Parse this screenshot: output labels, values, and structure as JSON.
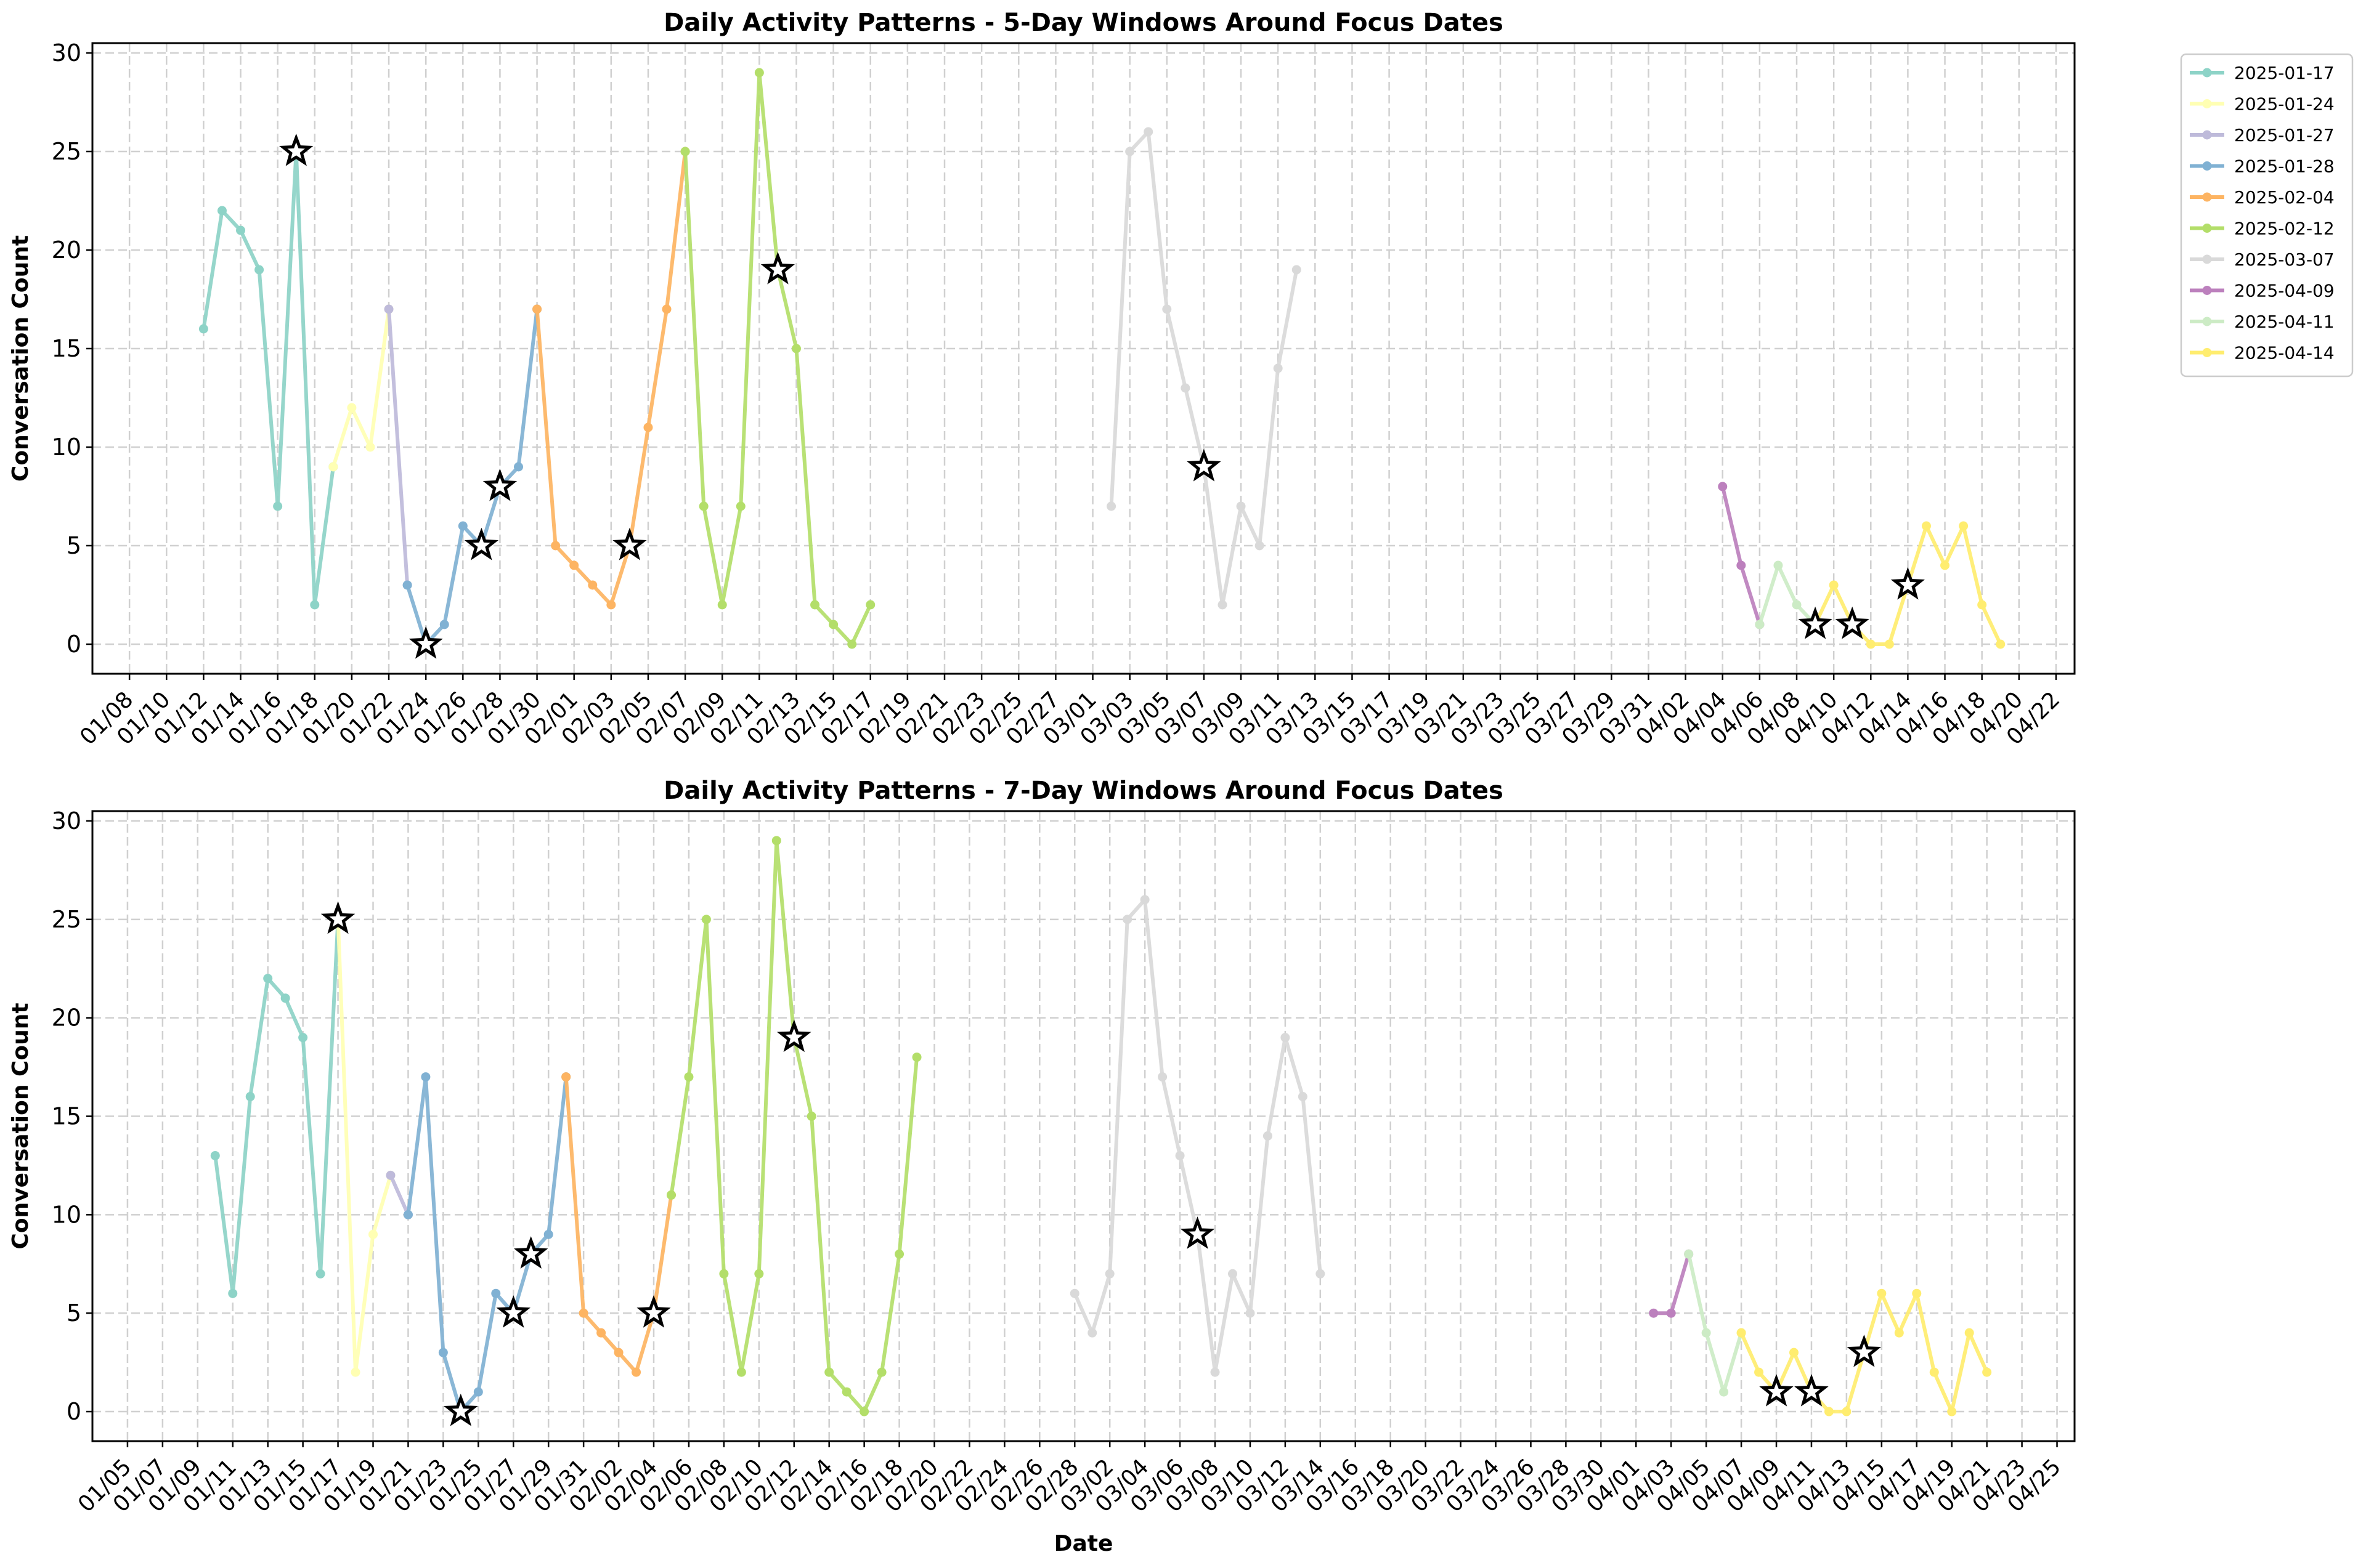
{
  "figure": {
    "legend_placement": "upper-right-outside",
    "legend": [
      {
        "label": "2025-01-17",
        "color": "#8dd3c7"
      },
      {
        "label": "2025-01-24",
        "color": "#ffffb3"
      },
      {
        "label": "2025-01-27",
        "color": "#bebada"
      },
      {
        "label": "2025-01-28",
        "color": "#80b1d3"
      },
      {
        "label": "2025-02-04",
        "color": "#fdb462"
      },
      {
        "label": "2025-02-12",
        "color": "#b3de69"
      },
      {
        "label": "2025-03-07",
        "color": "#d9d9d9"
      },
      {
        "label": "2025-04-09",
        "color": "#bc80bd"
      },
      {
        "label": "2025-04-11",
        "color": "#ccebc5"
      },
      {
        "label": "2025-04-14",
        "color": "#ffed6f"
      }
    ]
  },
  "chart_data": [
    {
      "type": "line",
      "title": "Daily Activity Patterns - 5-Day Windows Around Focus Dates",
      "xlabel": "",
      "ylabel": "Conversation Count",
      "xlim": [
        "2025-01-06",
        "2025-04-23"
      ],
      "ylim": [
        -1.5,
        30.5
      ],
      "xticks": [
        "01/08",
        "01/10",
        "01/12",
        "01/14",
        "01/16",
        "01/18",
        "01/20",
        "01/22",
        "01/24",
        "01/26",
        "01/28",
        "01/30",
        "02/01",
        "02/03",
        "02/05",
        "02/07",
        "02/09",
        "02/11",
        "02/13",
        "02/15",
        "02/17",
        "02/19",
        "02/21",
        "02/23",
        "02/25",
        "02/27",
        "03/01",
        "03/03",
        "03/05",
        "03/07",
        "03/09",
        "03/11",
        "03/13",
        "03/15",
        "03/17",
        "03/19",
        "03/21",
        "03/23",
        "03/25",
        "03/27",
        "03/29",
        "03/31",
        "04/02",
        "04/04",
        "04/06",
        "04/08",
        "04/10",
        "04/12",
        "04/14",
        "04/16",
        "04/18",
        "04/20",
        "04/22"
      ],
      "tick_dates": [
        "2025-01-08",
        "2025-01-10",
        "2025-01-12",
        "2025-01-14",
        "2025-01-16",
        "2025-01-18",
        "2025-01-20",
        "2025-01-22",
        "2025-01-24",
        "2025-01-26",
        "2025-01-28",
        "2025-01-30",
        "2025-02-01",
        "2025-02-03",
        "2025-02-05",
        "2025-02-07",
        "2025-02-09",
        "2025-02-11",
        "2025-02-13",
        "2025-02-15",
        "2025-02-17",
        "2025-02-19",
        "2025-02-21",
        "2025-02-23",
        "2025-02-25",
        "2025-02-27",
        "2025-03-01",
        "2025-03-03",
        "2025-03-05",
        "2025-03-07",
        "2025-03-09",
        "2025-03-11",
        "2025-03-13",
        "2025-03-15",
        "2025-03-17",
        "2025-03-19",
        "2025-03-21",
        "2025-03-23",
        "2025-03-25",
        "2025-03-27",
        "2025-03-29",
        "2025-03-31",
        "2025-04-02",
        "2025-04-04",
        "2025-04-06",
        "2025-04-08",
        "2025-04-10",
        "2025-04-12",
        "2025-04-14",
        "2025-04-16",
        "2025-04-18",
        "2025-04-20",
        "2025-04-22"
      ],
      "yticks": [
        0,
        5,
        10,
        15,
        20,
        25,
        30
      ],
      "grid": true,
      "series": [
        {
          "name": "2025-01-17",
          "color": "#8dd3c7",
          "x": [
            "2025-01-12",
            "2025-01-13",
            "2025-01-14",
            "2025-01-15",
            "2025-01-16",
            "2025-01-17",
            "2025-01-18",
            "2025-01-19"
          ],
          "y": [
            16,
            22,
            21,
            19,
            7,
            25,
            2,
            9
          ]
        },
        {
          "name": "2025-01-24",
          "color": "#ffffb3",
          "x": [
            "2025-01-19",
            "2025-01-20",
            "2025-01-21",
            "2025-01-22"
          ],
          "y": [
            9,
            12,
            10,
            17
          ]
        },
        {
          "name": "2025-01-27",
          "color": "#bebada",
          "x": [
            "2025-01-22",
            "2025-01-23"
          ],
          "y": [
            17,
            3
          ]
        },
        {
          "name": "2025-01-28",
          "color": "#80b1d3",
          "x": [
            "2025-01-23",
            "2025-01-24",
            "2025-01-25",
            "2025-01-26",
            "2025-01-27",
            "2025-01-28",
            "2025-01-29",
            "2025-01-30"
          ],
          "y": [
            3,
            0,
            1,
            6,
            5,
            8,
            9,
            17
          ]
        },
        {
          "name": "2025-02-04",
          "color": "#fdb462",
          "x": [
            "2025-01-30",
            "2025-01-31",
            "2025-02-01",
            "2025-02-02",
            "2025-02-03",
            "2025-02-04",
            "2025-02-05",
            "2025-02-06",
            "2025-02-07"
          ],
          "y": [
            17,
            5,
            4,
            3,
            2,
            5,
            11,
            17,
            25
          ]
        },
        {
          "name": "2025-02-12",
          "color": "#b3de69",
          "x": [
            "2025-02-07",
            "2025-02-08",
            "2025-02-09",
            "2025-02-10",
            "2025-02-11",
            "2025-02-12",
            "2025-02-13",
            "2025-02-14",
            "2025-02-15",
            "2025-02-16",
            "2025-02-17"
          ],
          "y": [
            25,
            7,
            2,
            7,
            29,
            19,
            15,
            2,
            1,
            0,
            2
          ]
        },
        {
          "name": "2025-03-07",
          "color": "#d9d9d9",
          "x": [
            "2025-03-02",
            "2025-03-03",
            "2025-03-04",
            "2025-03-05",
            "2025-03-06",
            "2025-03-07",
            "2025-03-08",
            "2025-03-09",
            "2025-03-10",
            "2025-03-11",
            "2025-03-12"
          ],
          "y": [
            7,
            25,
            26,
            17,
            13,
            9,
            2,
            7,
            5,
            14,
            19
          ]
        },
        {
          "name": "2025-04-09",
          "color": "#bc80bd",
          "x": [
            "2025-04-04",
            "2025-04-05",
            "2025-04-06"
          ],
          "y": [
            8,
            4,
            1
          ]
        },
        {
          "name": "2025-04-11",
          "color": "#ccebc5",
          "x": [
            "2025-04-06",
            "2025-04-07",
            "2025-04-08",
            "2025-04-09"
          ],
          "y": [
            1,
            4,
            2,
            1
          ]
        },
        {
          "name": "2025-04-14",
          "color": "#ffed6f",
          "x": [
            "2025-04-09",
            "2025-04-10",
            "2025-04-11",
            "2025-04-12",
            "2025-04-13",
            "2025-04-14",
            "2025-04-15",
            "2025-04-16",
            "2025-04-17",
            "2025-04-18",
            "2025-04-19"
          ],
          "y": [
            1,
            3,
            1,
            0,
            0,
            3,
            6,
            4,
            6,
            2,
            0
          ]
        }
      ],
      "focus_markers": {
        "x": [
          "2025-01-17",
          "2025-01-24",
          "2025-01-27",
          "2025-01-28",
          "2025-02-04",
          "2025-02-12",
          "2025-03-07",
          "2025-04-09",
          "2025-04-11",
          "2025-04-14"
        ],
        "y": [
          25,
          0,
          5,
          8,
          5,
          19,
          9,
          1,
          1,
          3
        ]
      }
    },
    {
      "type": "line",
      "title": "Daily Activity Patterns - 7-Day Windows Around Focus Dates",
      "xlabel": "Date",
      "ylabel": "Conversation Count",
      "xlim": [
        "2025-01-03",
        "2025-04-26"
      ],
      "ylim": [
        -1.5,
        30.5
      ],
      "xticks": [
        "01/05",
        "01/07",
        "01/09",
        "01/11",
        "01/13",
        "01/15",
        "01/17",
        "01/19",
        "01/21",
        "01/23",
        "01/25",
        "01/27",
        "01/29",
        "01/31",
        "02/02",
        "02/04",
        "02/06",
        "02/08",
        "02/10",
        "02/12",
        "02/14",
        "02/16",
        "02/18",
        "02/20",
        "02/22",
        "02/24",
        "02/26",
        "02/28",
        "03/02",
        "03/04",
        "03/06",
        "03/08",
        "03/10",
        "03/12",
        "03/14",
        "03/16",
        "03/18",
        "03/20",
        "03/22",
        "03/24",
        "03/26",
        "03/28",
        "03/30",
        "04/01",
        "04/03",
        "04/05",
        "04/07",
        "04/09",
        "04/11",
        "04/13",
        "04/15",
        "04/17",
        "04/19",
        "04/21",
        "04/23",
        "04/25"
      ],
      "tick_dates": [
        "2025-01-05",
        "2025-01-07",
        "2025-01-09",
        "2025-01-11",
        "2025-01-13",
        "2025-01-15",
        "2025-01-17",
        "2025-01-19",
        "2025-01-21",
        "2025-01-23",
        "2025-01-25",
        "2025-01-27",
        "2025-01-29",
        "2025-01-31",
        "2025-02-02",
        "2025-02-04",
        "2025-02-06",
        "2025-02-08",
        "2025-02-10",
        "2025-02-12",
        "2025-02-14",
        "2025-02-16",
        "2025-02-18",
        "2025-02-20",
        "2025-02-22",
        "2025-02-24",
        "2025-02-26",
        "2025-02-28",
        "2025-03-02",
        "2025-03-04",
        "2025-03-06",
        "2025-03-08",
        "2025-03-10",
        "2025-03-12",
        "2025-03-14",
        "2025-03-16",
        "2025-03-18",
        "2025-03-20",
        "2025-03-22",
        "2025-03-24",
        "2025-03-26",
        "2025-03-28",
        "2025-03-30",
        "2025-04-01",
        "2025-04-03",
        "2025-04-05",
        "2025-04-07",
        "2025-04-09",
        "2025-04-11",
        "2025-04-13",
        "2025-04-15",
        "2025-04-17",
        "2025-04-19",
        "2025-04-21",
        "2025-04-23",
        "2025-04-25"
      ],
      "yticks": [
        0,
        5,
        10,
        15,
        20,
        25,
        30
      ],
      "grid": true,
      "series": [
        {
          "name": "2025-01-17",
          "color": "#8dd3c7",
          "x": [
            "2025-01-10",
            "2025-01-11",
            "2025-01-12",
            "2025-01-13",
            "2025-01-14",
            "2025-01-15",
            "2025-01-16",
            "2025-01-17"
          ],
          "y": [
            13,
            6,
            16,
            22,
            21,
            19,
            7,
            25
          ]
        },
        {
          "name": "2025-01-24",
          "color": "#ffffb3",
          "x": [
            "2025-01-17",
            "2025-01-18",
            "2025-01-19",
            "2025-01-20"
          ],
          "y": [
            25,
            2,
            9,
            12
          ]
        },
        {
          "name": "2025-01-27",
          "color": "#bebada",
          "x": [
            "2025-01-20",
            "2025-01-21"
          ],
          "y": [
            12,
            10
          ]
        },
        {
          "name": "2025-01-28",
          "color": "#80b1d3",
          "x": [
            "2025-01-21",
            "2025-01-22",
            "2025-01-23",
            "2025-01-24",
            "2025-01-25",
            "2025-01-26",
            "2025-01-27",
            "2025-01-28",
            "2025-01-29",
            "2025-01-30"
          ],
          "y": [
            10,
            17,
            3,
            0,
            1,
            6,
            5,
            8,
            9,
            17
          ]
        },
        {
          "name": "2025-02-04",
          "color": "#fdb462",
          "x": [
            "2025-01-30",
            "2025-01-31",
            "2025-02-01",
            "2025-02-02",
            "2025-02-03",
            "2025-02-04",
            "2025-02-05"
          ],
          "y": [
            17,
            5,
            4,
            3,
            2,
            5,
            11
          ]
        },
        {
          "name": "2025-02-12",
          "color": "#b3de69",
          "x": [
            "2025-02-05",
            "2025-02-06",
            "2025-02-07",
            "2025-02-08",
            "2025-02-09",
            "2025-02-10",
            "2025-02-11",
            "2025-02-12",
            "2025-02-13",
            "2025-02-14",
            "2025-02-15",
            "2025-02-16",
            "2025-02-17",
            "2025-02-18",
            "2025-02-19"
          ],
          "y": [
            11,
            17,
            25,
            7,
            2,
            7,
            29,
            19,
            15,
            2,
            1,
            0,
            2,
            8,
            18
          ]
        },
        {
          "name": "2025-03-07",
          "color": "#d9d9d9",
          "x": [
            "2025-02-28",
            "2025-03-01",
            "2025-03-02",
            "2025-03-03",
            "2025-03-04",
            "2025-03-05",
            "2025-03-06",
            "2025-03-07",
            "2025-03-08",
            "2025-03-09",
            "2025-03-10",
            "2025-03-11",
            "2025-03-12",
            "2025-03-13",
            "2025-03-14"
          ],
          "y": [
            6,
            4,
            7,
            25,
            26,
            17,
            13,
            9,
            2,
            7,
            5,
            14,
            19,
            16,
            7
          ]
        },
        {
          "name": "2025-04-09",
          "color": "#bc80bd",
          "x": [
            "2025-04-02",
            "2025-04-03",
            "2025-04-04"
          ],
          "y": [
            5,
            5,
            8
          ]
        },
        {
          "name": "2025-04-11",
          "color": "#ccebc5",
          "x": [
            "2025-04-04",
            "2025-04-05",
            "2025-04-06",
            "2025-04-07"
          ],
          "y": [
            8,
            4,
            1,
            4
          ]
        },
        {
          "name": "2025-04-14",
          "color": "#ffed6f",
          "x": [
            "2025-04-07",
            "2025-04-08",
            "2025-04-09",
            "2025-04-10",
            "2025-04-11",
            "2025-04-12",
            "2025-04-13",
            "2025-04-14",
            "2025-04-15",
            "2025-04-16",
            "2025-04-17",
            "2025-04-18",
            "2025-04-19",
            "2025-04-20",
            "2025-04-21"
          ],
          "y": [
            4,
            2,
            1,
            3,
            1,
            0,
            0,
            3,
            6,
            4,
            6,
            2,
            0,
            4,
            2
          ]
        }
      ],
      "focus_markers": {
        "x": [
          "2025-01-17",
          "2025-01-24",
          "2025-01-27",
          "2025-01-28",
          "2025-02-04",
          "2025-02-12",
          "2025-03-07",
          "2025-04-09",
          "2025-04-11",
          "2025-04-14"
        ],
        "y": [
          25,
          0,
          5,
          8,
          5,
          19,
          9,
          1,
          1,
          3
        ]
      }
    }
  ]
}
